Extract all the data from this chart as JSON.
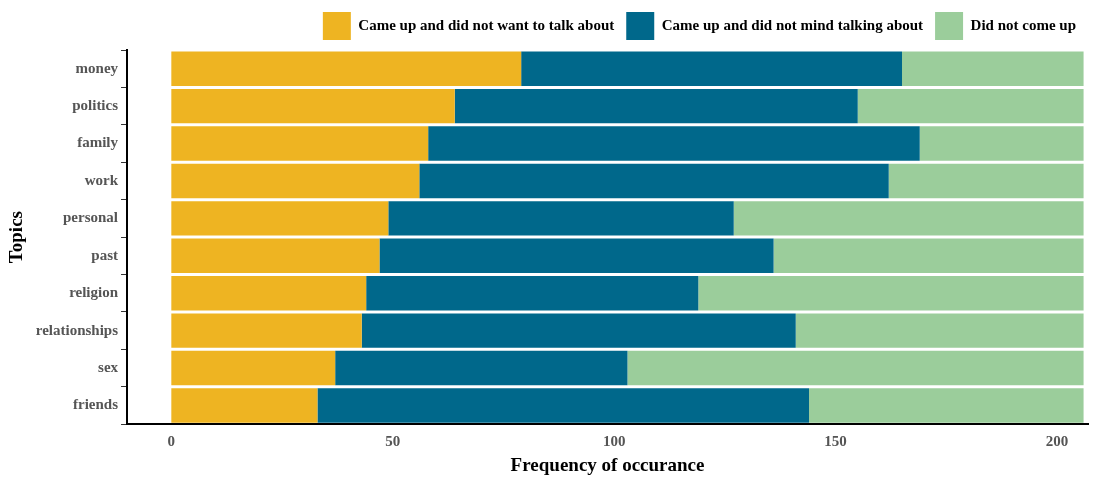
{
  "chart_data": {
    "type": "bar",
    "orientation": "horizontal",
    "stacked": true,
    "xlabel": "Frequency of occurance",
    "ylabel": "Topics",
    "categories": [
      "money",
      "politics",
      "family",
      "work",
      "personal",
      "past",
      "religion",
      "relationships",
      "sex",
      "friends"
    ],
    "series": [
      {
        "name": "Came up and did not want to talk about",
        "color": "#eeb422",
        "values": [
          79,
          64,
          58,
          56,
          49,
          47,
          44,
          43,
          37,
          33
        ]
      },
      {
        "name": "Came up and did not mind talking about",
        "color": "#00688b",
        "values": [
          86,
          91,
          111,
          106,
          78,
          89,
          75,
          98,
          66,
          111
        ]
      },
      {
        "name": "Did not come up",
        "color": "#9bcd9b",
        "values": [
          41,
          51,
          37,
          44,
          79,
          70,
          87,
          65,
          103,
          62
        ]
      }
    ],
    "xlim": [
      -10,
      207
    ],
    "xticks": [
      0,
      50,
      100,
      150,
      200
    ],
    "grid": false,
    "legend": "top right"
  }
}
